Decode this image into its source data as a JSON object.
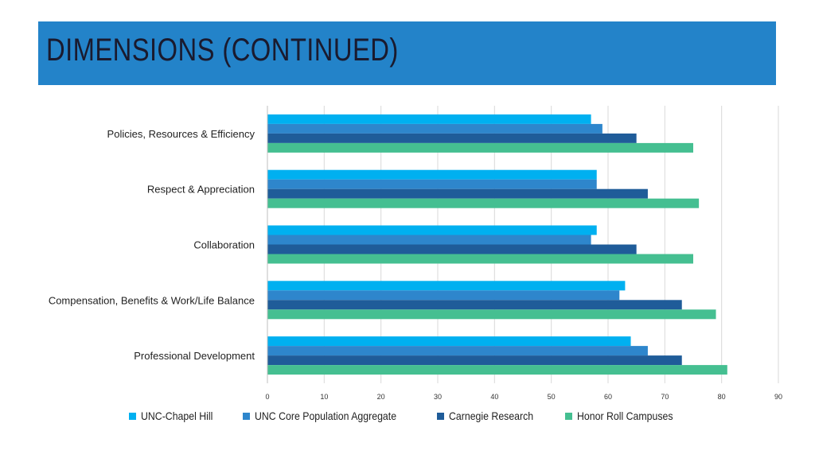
{
  "page": {
    "title": "DIMENSIONS (CONTINUED)"
  },
  "colors": {
    "banner": "#2383c9",
    "grid": "#d9d9d9"
  },
  "chart_data": {
    "type": "bar",
    "orientation": "horizontal",
    "title": "",
    "xlabel": "",
    "ylabel": "",
    "categories": [
      "Policies, Resources & Efficiency",
      "Respect & Appreciation",
      "Collaboration",
      "Compensation, Benefits & Work/Life Balance",
      "Professional Development"
    ],
    "series": [
      {
        "name": "UNC-Chapel Hill",
        "color": "#00b0f0",
        "values": [
          57,
          58,
          58,
          63,
          64
        ]
      },
      {
        "name": "UNC Core Population Aggregate",
        "color": "#2e86cc",
        "values": [
          59,
          58,
          57,
          62,
          67
        ]
      },
      {
        "name": "Carnegie Research",
        "color": "#1f5c99",
        "values": [
          65,
          67,
          65,
          73,
          73
        ]
      },
      {
        "name": "Honor Roll Campuses",
        "color": "#45bf91",
        "values": [
          75,
          76,
          75,
          79,
          81
        ]
      }
    ],
    "xlim": [
      0,
      90
    ],
    "xticks": [
      0,
      10,
      20,
      30,
      40,
      50,
      60,
      70,
      80,
      90
    ],
    "grid": true,
    "legend_position": "bottom"
  }
}
